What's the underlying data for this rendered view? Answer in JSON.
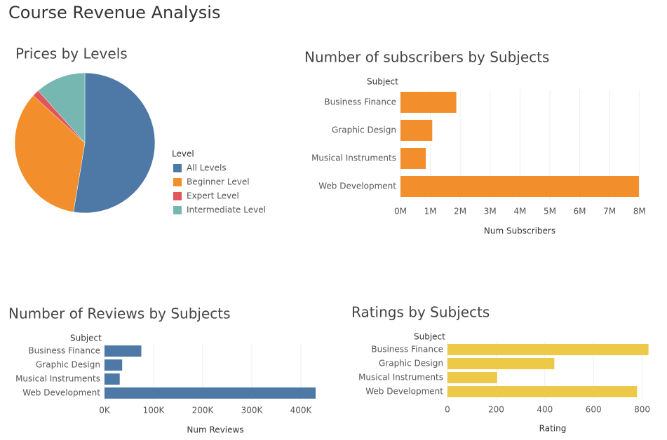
{
  "title": "Course Revenue Analysis",
  "chart_data": [
    {
      "type": "pie",
      "title": "Prices by Levels",
      "legend_title": "Level",
      "categories": [
        "All Levels",
        "Beginner Level",
        "Expert Level",
        "Intermediate Level"
      ],
      "values": [
        52.6,
        34.2,
        1.6,
        11.6
      ],
      "colors": [
        "#4e79a7",
        "#f28e2b",
        "#e15759",
        "#76b7b2"
      ]
    },
    {
      "type": "hbar",
      "title": "Number of subscribers by Subjects",
      "category_label": "Subject",
      "categories": [
        "Business Finance",
        "Graphic Design",
        "Musical Instruments",
        "Web Development"
      ],
      "values": [
        1868711,
        1063148,
        846689,
        7981148
      ],
      "color": "#f28e2b",
      "xlim": [
        0,
        8100000
      ],
      "xticks": [
        {
          "value": 0,
          "label": "0M"
        },
        {
          "value": 1000000,
          "label": "1M"
        },
        {
          "value": 2000000,
          "label": "2M"
        },
        {
          "value": 3000000,
          "label": "3M"
        },
        {
          "value": 4000000,
          "label": "4M"
        },
        {
          "value": 5000000,
          "label": "5M"
        },
        {
          "value": 6000000,
          "label": "6M"
        },
        {
          "value": 7000000,
          "label": "7M"
        },
        {
          "value": 8000000,
          "label": "8M"
        }
      ],
      "x_label": "Num Subscribers",
      "grid": true
    },
    {
      "type": "hbar",
      "title": "Number of Reviews by Subjects",
      "category_label": "Subject",
      "categories": [
        "Business Finance",
        "Graphic Design",
        "Musical Instruments",
        "Web Development"
      ],
      "values": [
        75000,
        36000,
        31000,
        430000
      ],
      "color": "#4e79a7",
      "xlim": [
        0,
        440000
      ],
      "xticks": [
        {
          "value": 0,
          "label": "0K"
        },
        {
          "value": 100000,
          "label": "100K"
        },
        {
          "value": 200000,
          "label": "200K"
        },
        {
          "value": 300000,
          "label": "300K"
        },
        {
          "value": 400000,
          "label": "400K"
        }
      ],
      "x_label": "Num Reviews",
      "grid": true
    },
    {
      "type": "hbar",
      "title": "Ratings by Subjects",
      "category_label": "Subject",
      "categories": [
        "Business Finance",
        "Graphic Design",
        "Musical Instruments",
        "Web Development"
      ],
      "values": [
        826,
        439,
        204,
        779
      ],
      "color": "#edc948",
      "xlim": [
        0,
        830
      ],
      "xticks": [
        0,
        200,
        400,
        600,
        800
      ],
      "x_label": "Rating",
      "grid": true
    }
  ]
}
